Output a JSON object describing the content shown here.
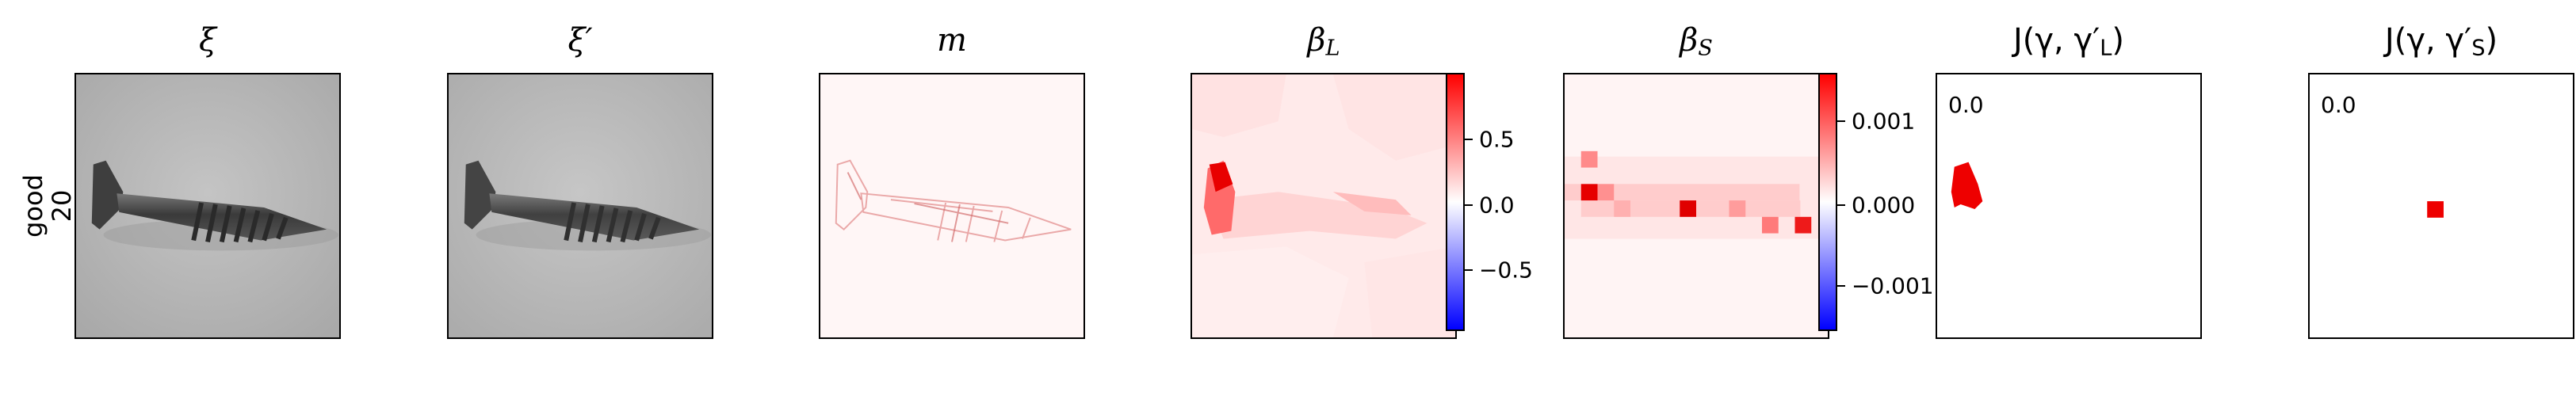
{
  "row_label": {
    "line1": "good",
    "line2": "20"
  },
  "panels": [
    {
      "title": "ξ"
    },
    {
      "title": "ξ′"
    },
    {
      "title": "m"
    },
    {
      "title_base": "β",
      "title_sub": "L"
    },
    {
      "title_base": "β",
      "title_sub": "S"
    },
    {
      "title_prefix": "J(γ, γ′",
      "title_sub": "L",
      "title_suffix": ")",
      "corner_value": "0.0"
    },
    {
      "title_prefix": "J(γ, γ′",
      "title_sub": "S",
      "title_suffix": ")",
      "corner_value": "0.0"
    }
  ],
  "colorbar_L": {
    "ticks": [
      "0.5",
      "0.0",
      "−0.5"
    ],
    "colors": [
      "#ff0000",
      "#ffffff",
      "#0000ff"
    ]
  },
  "colorbar_S": {
    "ticks": [
      "0.001",
      "0.000",
      "−0.001"
    ],
    "colors": [
      "#ff0000",
      "#ffffff",
      "#0000ff"
    ]
  }
}
